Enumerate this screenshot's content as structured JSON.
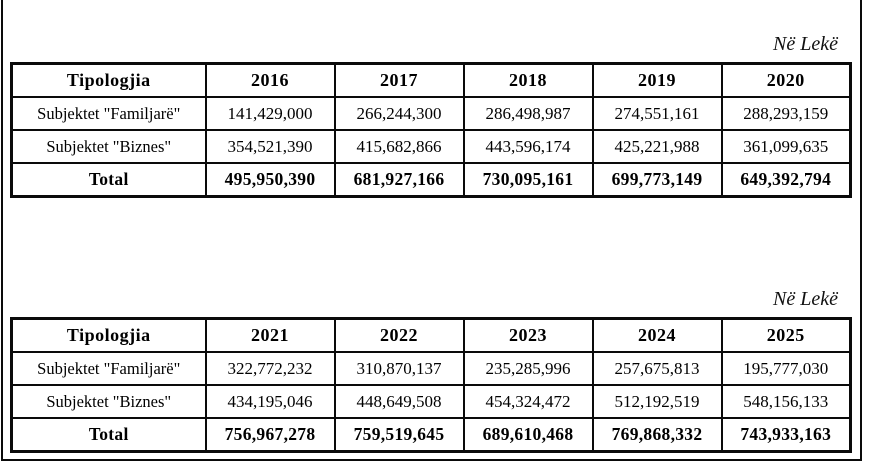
{
  "page": {
    "background": "#ffffff",
    "border_color": "#0a0a0a",
    "text_color": "#000000"
  },
  "tables": [
    {
      "unit_label": "Në Lekë",
      "header": [
        "Tipologjia",
        "2016",
        "2017",
        "2018",
        "2019",
        "2020"
      ],
      "rows": [
        [
          "Subjektet \"Familjarë\"",
          "141,429,000",
          "266,244,300",
          "286,498,987",
          "274,551,161",
          "288,293,159"
        ],
        [
          "Subjektet \"Biznes\"",
          "354,521,390",
          "415,682,866",
          "443,596,174",
          "425,221,988",
          "361,099,635"
        ],
        [
          "Total",
          "495,950,390",
          "681,927,166",
          "730,095,161",
          "699,773,149",
          "649,392,794"
        ]
      ]
    },
    {
      "unit_label": "Në Lekë",
      "header": [
        "Tipologjia",
        "2021",
        "2022",
        "2023",
        "2024",
        "2025"
      ],
      "rows": [
        [
          "Subjektet \"Familjarë\"",
          "322,772,232",
          "310,870,137",
          "235,285,996",
          "257,675,813",
          "195,777,030"
        ],
        [
          "Subjektet \"Biznes\"",
          "434,195,046",
          "448,649,508",
          "454,324,472",
          "512,192,519",
          "548,156,133"
        ],
        [
          "Total",
          "756,967,278",
          "759,519,645",
          "689,610,468",
          "769,868,332",
          "743,933,163"
        ]
      ]
    }
  ]
}
